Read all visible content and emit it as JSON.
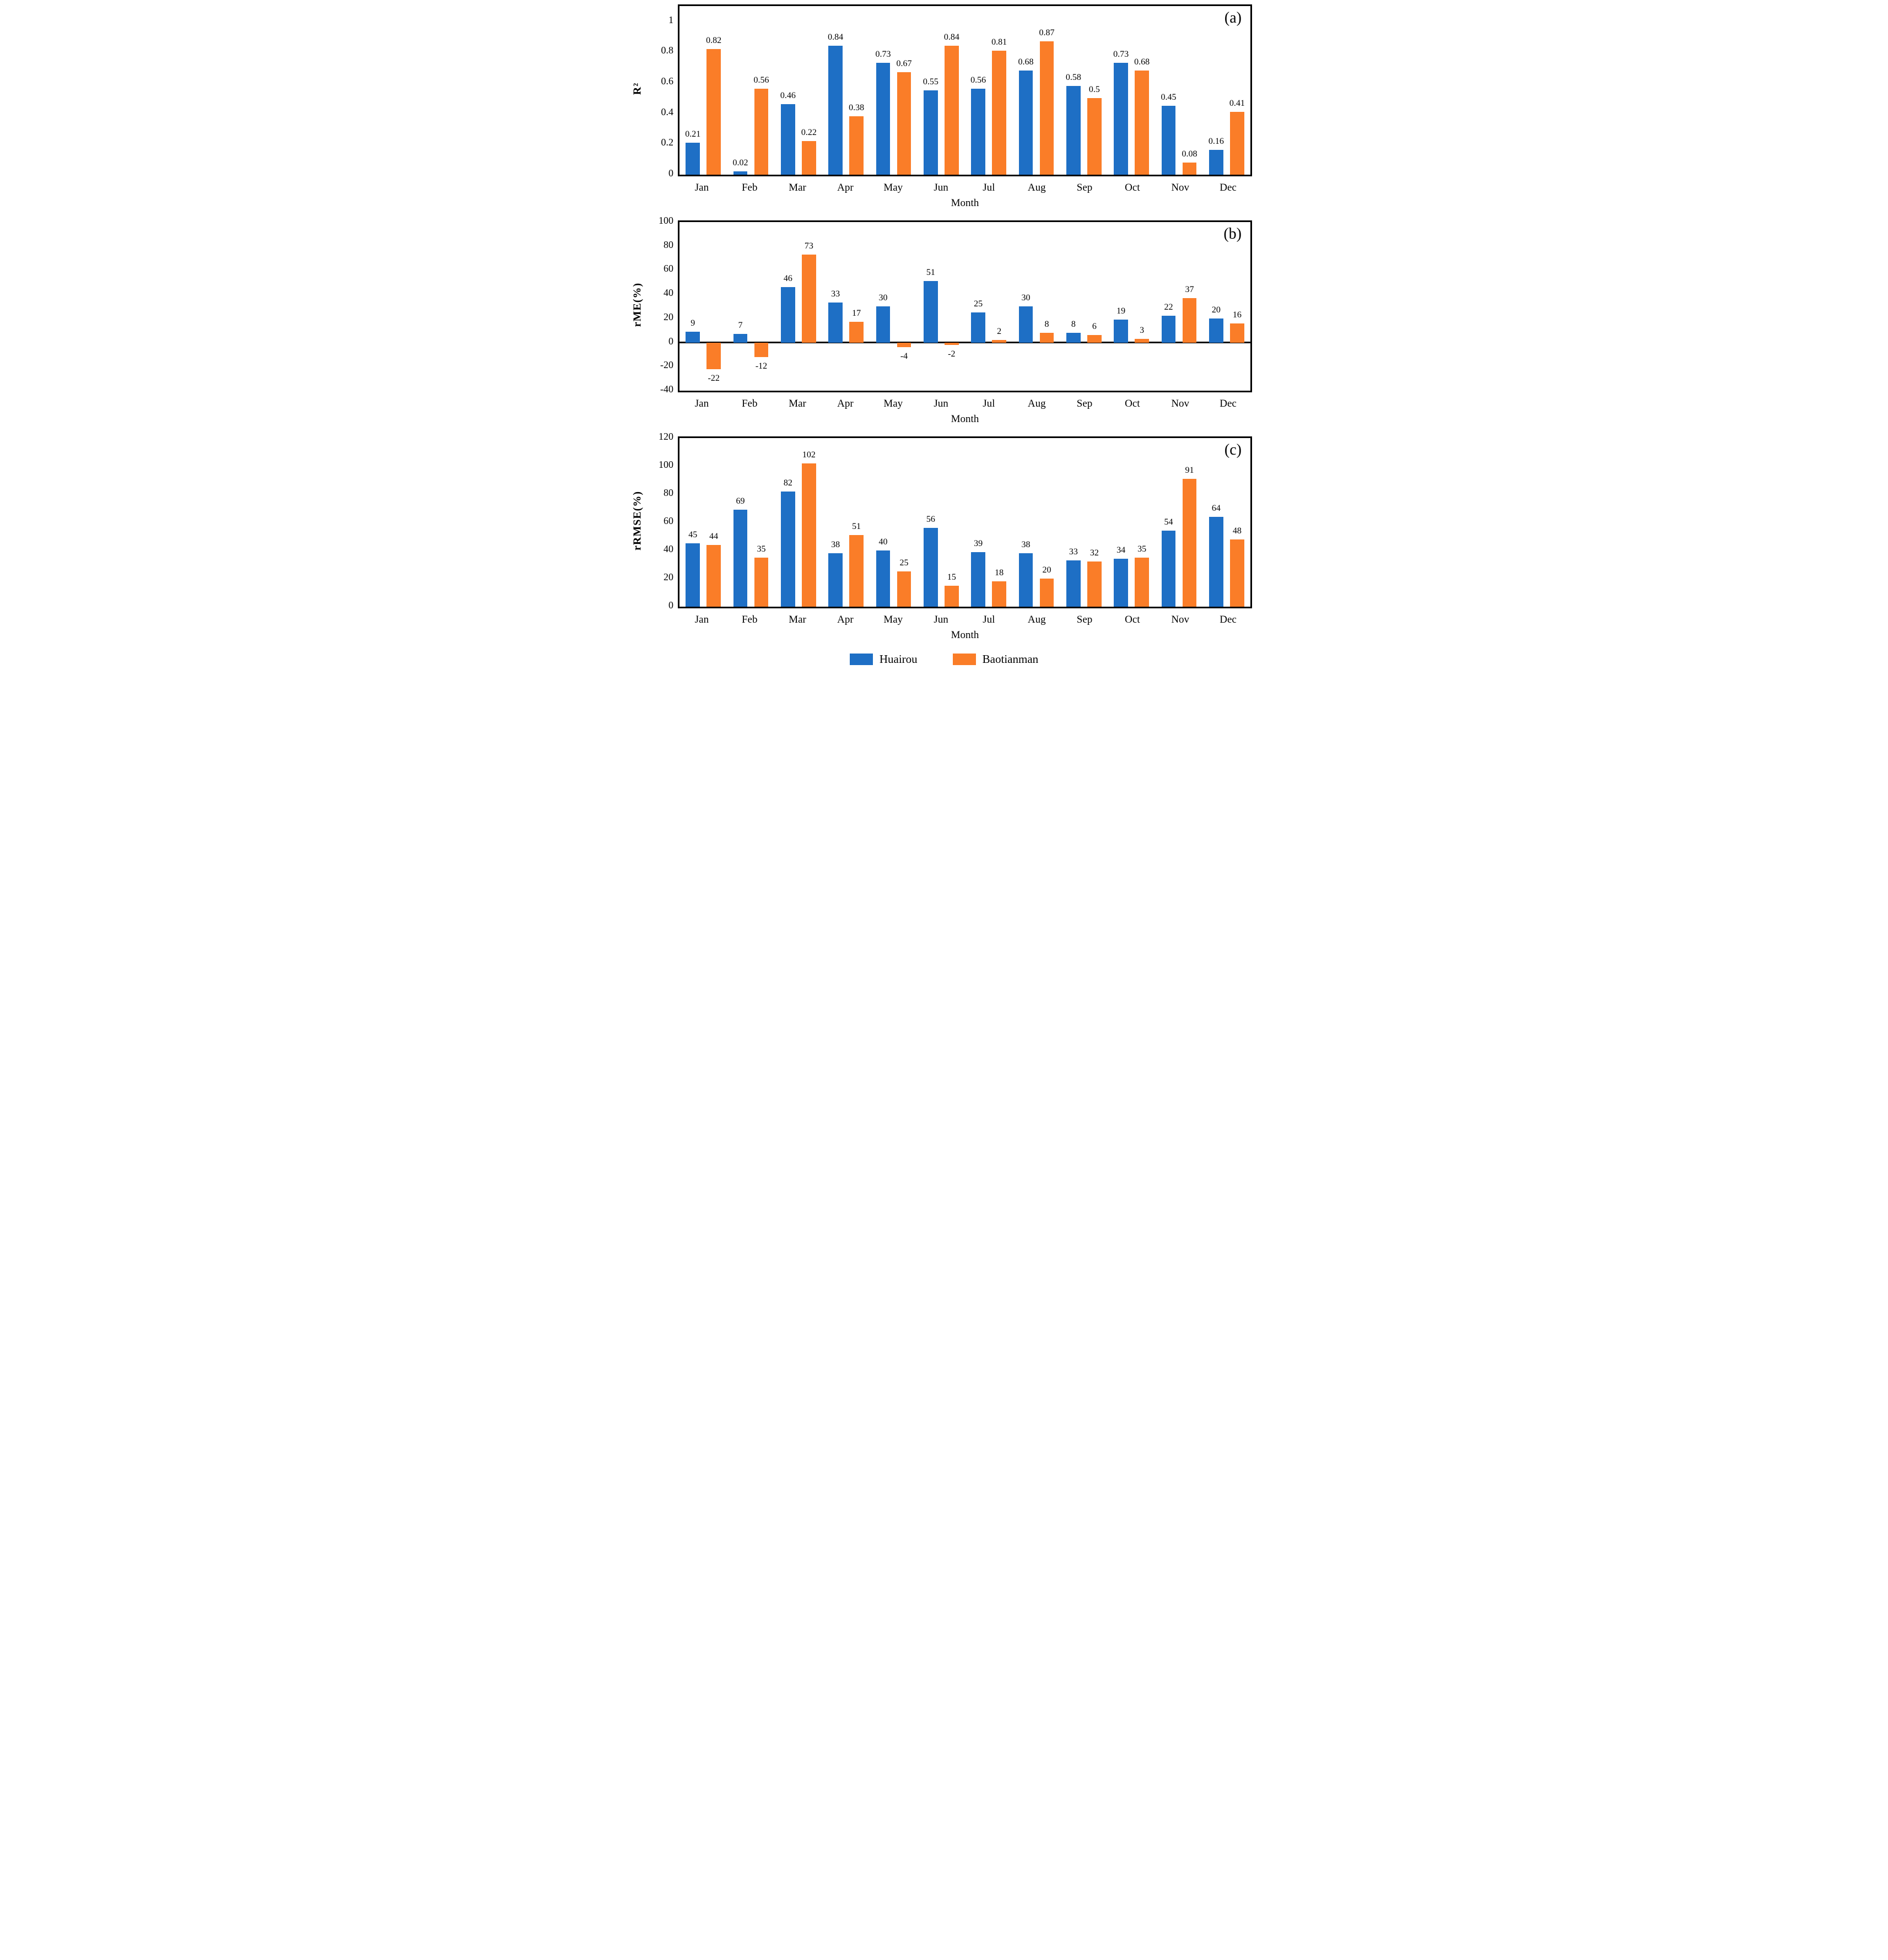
{
  "legend": {
    "items": [
      {
        "label": "Huairou",
        "color": "#1E6FC5"
      },
      {
        "label": "Baotianman",
        "color": "#FA7D28"
      }
    ]
  },
  "frame_color": "#000000",
  "chart_data": [
    {
      "id": "a",
      "panel_label": "(a)",
      "type": "bar",
      "title": "",
      "xlabel": "Month",
      "ylabel": "R²",
      "ylim": [
        0,
        1.1
      ],
      "yticks": [
        0,
        0.2,
        0.4,
        0.6,
        0.8,
        1
      ],
      "grid": false,
      "categories": [
        "Jan",
        "Feb",
        "Mar",
        "Apr",
        "May",
        "Jun",
        "Jul",
        "Aug",
        "Sep",
        "Oct",
        "Nov",
        "Dec"
      ],
      "series": [
        {
          "name": "Huairou",
          "values": [
            0.21,
            0.02,
            0.46,
            0.84,
            0.73,
            0.55,
            0.56,
            0.68,
            0.58,
            0.73,
            0.45,
            0.16
          ]
        },
        {
          "name": "Baotianman",
          "values": [
            0.82,
            0.56,
            0.22,
            0.38,
            0.67,
            0.84,
            0.81,
            0.87,
            0.5,
            0.68,
            0.08,
            0.41
          ]
        }
      ]
    },
    {
      "id": "b",
      "panel_label": "(b)",
      "type": "bar",
      "title": "",
      "xlabel": "Month",
      "ylabel": "rME(%)",
      "ylim": [
        -40,
        100
      ],
      "yticks": [
        -40,
        -20,
        0,
        20,
        40,
        60,
        80,
        100
      ],
      "grid": false,
      "categories": [
        "Jan",
        "Feb",
        "Mar",
        "Apr",
        "May",
        "Jun",
        "Jul",
        "Aug",
        "Sep",
        "Oct",
        "Nov",
        "Dec"
      ],
      "series": [
        {
          "name": "Huairou",
          "values": [
            9,
            7,
            46,
            33,
            30,
            51,
            25,
            30,
            8,
            19,
            22,
            20
          ]
        },
        {
          "name": "Baotianman",
          "values": [
            -22,
            -12,
            73,
            17,
            -4,
            -2,
            2,
            8,
            6,
            3,
            37,
            16
          ]
        }
      ]
    },
    {
      "id": "c",
      "panel_label": "(c)",
      "type": "bar",
      "title": "",
      "xlabel": "Month",
      "ylabel": "rRMSE(%)",
      "ylim": [
        0,
        120
      ],
      "yticks": [
        0,
        20,
        40,
        60,
        80,
        100,
        120
      ],
      "grid": false,
      "categories": [
        "Jan",
        "Feb",
        "Mar",
        "Apr",
        "May",
        "Jun",
        "Jul",
        "Aug",
        "Sep",
        "Oct",
        "Nov",
        "Dec"
      ],
      "series": [
        {
          "name": "Huairou",
          "values": [
            45,
            69,
            82,
            38,
            40,
            56,
            39,
            38,
            33,
            34,
            54,
            64
          ]
        },
        {
          "name": "Baotianman",
          "values": [
            44,
            35,
            102,
            51,
            25,
            15,
            18,
            20,
            32,
            35,
            91,
            48
          ]
        }
      ]
    }
  ]
}
